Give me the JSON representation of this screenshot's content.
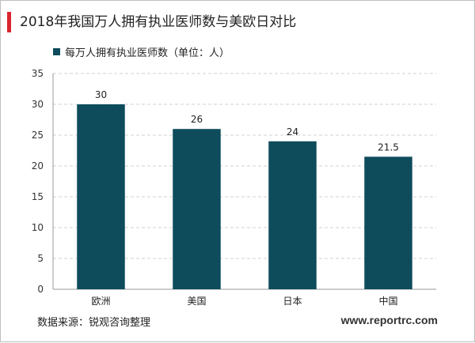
{
  "title": "2018年我国万人拥有执业医师数与美欧日对比",
  "legend": {
    "label": "每万人拥有执业医师数（单位：人）"
  },
  "chart_data": {
    "type": "bar",
    "categories": [
      "欧洲",
      "美国",
      "日本",
      "中国"
    ],
    "series": [
      {
        "name": "每万人拥有执业医师数（单位：人）",
        "values": [
          30,
          26,
          24,
          21.5
        ]
      }
    ],
    "value_labels": [
      "30",
      "26",
      "24",
      "21.5"
    ],
    "ylim": [
      0,
      35
    ],
    "yticks": [
      0,
      5,
      10,
      15,
      20,
      25,
      30,
      35
    ],
    "grid": true,
    "legend_position": "top-left"
  },
  "colors": {
    "bar": "#0e4c5c",
    "accent": "#d9262e",
    "grid": "#d0d0d0"
  },
  "footer": {
    "source": "数据来源：锐观咨询整理",
    "website": "www.reportrc.com"
  }
}
